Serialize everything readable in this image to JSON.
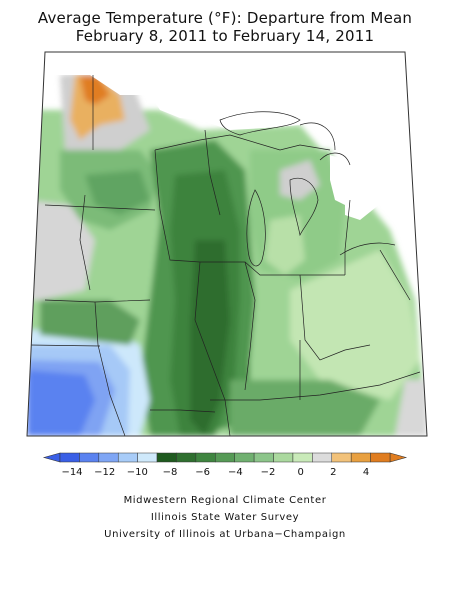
{
  "title": {
    "line1": "Average Temperature (°F): Departure from Mean",
    "line2": "February 8, 2011 to February 14, 2011"
  },
  "legend": {
    "colors": [
      "#3a5fe6",
      "#5a82f0",
      "#7fa6f5",
      "#a8ccf8",
      "#cfe9fb",
      "#1f5a1f",
      "#2f6f2f",
      "#3f8540",
      "#569a56",
      "#70b070",
      "#8cc58a",
      "#abd99f",
      "#c9eab9",
      "#dcdcdc",
      "#f2c27a",
      "#e8a040",
      "#e07d20"
    ],
    "left_arrow_color": "#3a5fe6",
    "right_arrow_color": "#e07d20",
    "ticks": [
      {
        "label": "−14",
        "value": -14
      },
      {
        "label": "−12",
        "value": -12
      },
      {
        "label": "−10",
        "value": -10
      },
      {
        "label": "−8",
        "value": -8
      },
      {
        "label": "−6",
        "value": -6
      },
      {
        "label": "−4",
        "value": -4
      },
      {
        "label": "−2",
        "value": -2
      },
      {
        "label": "0",
        "value": 0
      },
      {
        "label": "2",
        "value": 2
      },
      {
        "label": "4",
        "value": 4
      }
    ]
  },
  "credits": {
    "line1": "Midwestern Regional Climate Center",
    "line2": "Illinois State Water Survey",
    "line3": "University of Illinois at Urbana−Champaign"
  }
}
